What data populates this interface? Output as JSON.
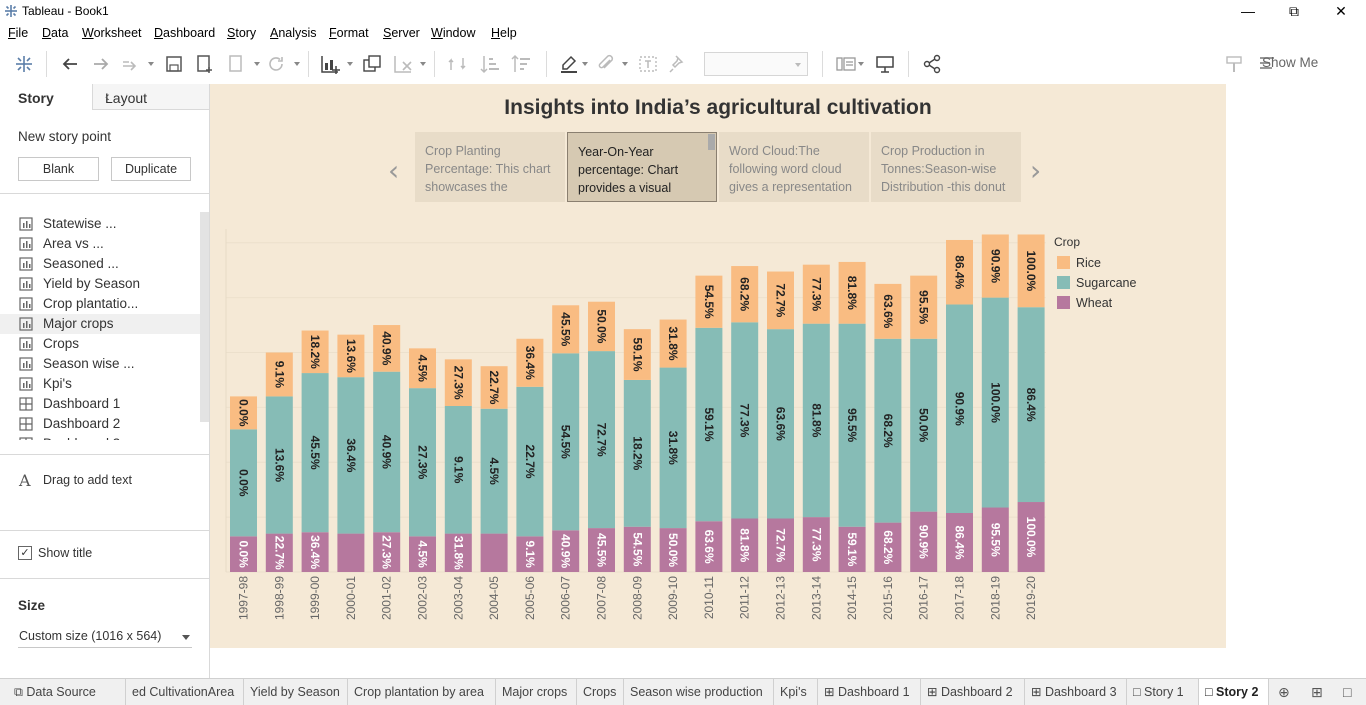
{
  "window": {
    "title": "Tableau - Book1"
  },
  "menu": [
    "File",
    "Data",
    "Worksheet",
    "Dashboard",
    "Story",
    "Analysis",
    "Format",
    "Server",
    "Window",
    "Help"
  ],
  "toolbar": {
    "show_me": "Show Me"
  },
  "left_panel": {
    "tabs": {
      "story": "Story",
      "layout": "Layout"
    },
    "new_story_point": "New story point",
    "blank_button": "Blank",
    "duplicate_button": "Duplicate",
    "sheets": [
      {
        "label": "Statewise ...",
        "icon": "worksheet-icon"
      },
      {
        "label": "Area vs ...",
        "icon": "worksheet-icon"
      },
      {
        "label": "Seasoned ...",
        "icon": "worksheet-icon"
      },
      {
        "label": "Yield by Season",
        "icon": "worksheet-icon"
      },
      {
        "label": "Crop plantatio...",
        "icon": "worksheet-icon"
      },
      {
        "label": "Major crops",
        "icon": "worksheet-icon"
      },
      {
        "label": "Crops",
        "icon": "worksheet-icon"
      },
      {
        "label": "Season wise ...",
        "icon": "worksheet-icon"
      },
      {
        "label": "Kpi's",
        "icon": "worksheet-icon"
      },
      {
        "label": "Dashboard 1",
        "icon": "dashboard-icon"
      },
      {
        "label": "Dashboard 2",
        "icon": "dashboard-icon"
      },
      {
        "label": "Dashboard 3",
        "icon": "dashboard-icon"
      }
    ],
    "drag_text": "Drag to add text",
    "show_title": "Show title",
    "size_heading": "Size",
    "size_value": "Custom size (1016 x 564)"
  },
  "story": {
    "title": "Insights into India’s agricultural cultivation",
    "points": [
      "Crop Planting Percentage: This chart showcases the",
      "Year-On-Year percentage: Chart provides a visual",
      "Word Cloud:The following word cloud gives a representation",
      "Crop Production in Tonnes:Season-wise Distribution -this donut"
    ],
    "active_point": 1
  },
  "colors": {
    "rice": "#f9bc82",
    "sugarcane": "#86bcb6",
    "wheat": "#b6789e",
    "story_bg": "#f5e9d6"
  },
  "chart_data": {
    "type": "bar",
    "stacked": true,
    "legend_title": "Crop",
    "legend_position": "right",
    "categories": [
      "1997-98",
      "1998-99",
      "1999-00",
      "2000-01",
      "2001-02",
      "2002-03",
      "2003-04",
      "2004-05",
      "2005-06",
      "2006-07",
      "2007-08",
      "2008-09",
      "2009-10",
      "2010-11",
      "2011-12",
      "2012-13",
      "2013-14",
      "2014-15",
      "2015-16",
      "2016-17",
      "2017-18",
      "2018-19",
      "2019-20"
    ],
    "series": [
      {
        "name": "Wheat",
        "values": [
          130,
          140,
          145,
          140,
          145,
          130,
          140,
          140,
          130,
          152,
          160,
          165,
          160,
          185,
          195,
          195,
          200,
          165,
          180,
          220,
          215,
          235,
          255
        ],
        "labels": [
          "0.0%",
          "22.7%",
          "36.4%",
          "",
          "27.3%",
          "4.5%",
          "31.8%",
          "",
          "9.1%",
          "40.9%",
          "45.5%",
          "54.5%",
          "50.0%",
          "63.6%",
          "81.8%",
          "72.7%",
          "77.3%",
          "59.1%",
          "68.2%",
          "90.9%",
          "86.4%",
          "95.5%",
          "100.0%"
        ]
      },
      {
        "name": "Sugarcane",
        "values": [
          390,
          500,
          580,
          570,
          585,
          540,
          465,
          455,
          545,
          645,
          645,
          535,
          585,
          705,
          715,
          690,
          705,
          740,
          670,
          630,
          760,
          765,
          710
        ],
        "labels": [
          "0.0%",
          "13.6%",
          "45.5%",
          "36.4%",
          "40.9%",
          "27.3%",
          "9.1%",
          "4.5%",
          "22.7%",
          "54.5%",
          "72.7%",
          "18.2%",
          "31.8%",
          "59.1%",
          "77.3%",
          "63.6%",
          "81.8%",
          "95.5%",
          "68.2%",
          "50.0%",
          "90.9%",
          "100.0%",
          "86.4%"
        ]
      },
      {
        "name": "Rice",
        "values": [
          120,
          160,
          155,
          155,
          170,
          145,
          170,
          155,
          175,
          175,
          180,
          185,
          175,
          190,
          205,
          210,
          215,
          225,
          200,
          230,
          235,
          230,
          265
        ],
        "labels": [
          "0.0%",
          "9.1%",
          "18.2%",
          "13.6%",
          "40.9%",
          "4.5%",
          "27.3%",
          "22.7%",
          "36.4%",
          "45.5%",
          "50.0%",
          "59.1%",
          "31.8%",
          "54.5%",
          "68.2%",
          "72.7%",
          "77.3%",
          "81.8%",
          "63.6%",
          "95.5%",
          "86.4%",
          "90.9%",
          "100.0%"
        ]
      }
    ]
  },
  "bottom_tabs": [
    "Data Source",
    "ed CultivationArea",
    "Yield by Season",
    "Crop plantation by area",
    "Major crops",
    "Crops",
    "Season wise production",
    "Kpi's",
    "Dashboard 1",
    "Dashboard 2",
    "Dashboard 3",
    "Story 1",
    "Story 2"
  ],
  "active_bottom_tab": "Story 2"
}
